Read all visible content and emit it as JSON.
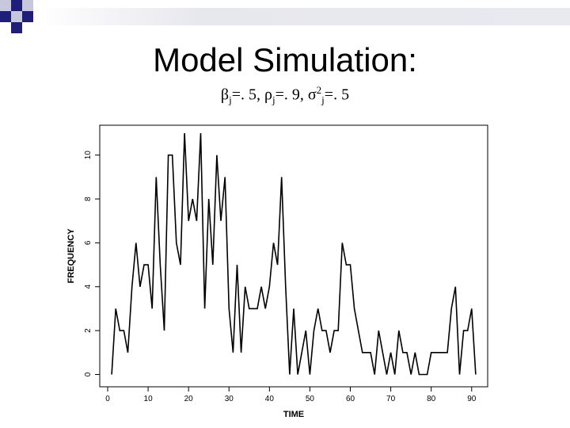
{
  "slide": {
    "title": "Model Simulation:",
    "subtitle": {
      "beta": "β",
      "beta_sub": "j",
      "beta_val": "=. 5, ",
      "rho": "ρ",
      "rho_sub": "j",
      "rho_val": "=. 9, ",
      "sigma": "σ",
      "sigma_sup": "2",
      "sigma_sub": "j",
      "sigma_val": "=. 5"
    }
  },
  "colors": {
    "corner_square_dark": "#1f1f7a",
    "corner_square_light": "#c8c8dc",
    "line": "#000000"
  },
  "chart_data": {
    "type": "line",
    "xlabel": "TIME",
    "ylabel": "FREQUENCY",
    "xlim": [
      0,
      92
    ],
    "ylim": [
      -0.2,
      11
    ],
    "xticks": [
      0,
      10,
      20,
      30,
      40,
      50,
      60,
      70,
      80,
      90
    ],
    "yticks": [
      0,
      2,
      4,
      6,
      8,
      10
    ],
    "grid": false,
    "series": [
      {
        "x": [
          1,
          2,
          3,
          4,
          5,
          6,
          7,
          8,
          9,
          10,
          11,
          12,
          13,
          14,
          15,
          16,
          17,
          18,
          19,
          20,
          21,
          22,
          23,
          24,
          25,
          26,
          27,
          28,
          29,
          30,
          31,
          32,
          33,
          34,
          35,
          36,
          37,
          38,
          39,
          40,
          41,
          42,
          43,
          44,
          45,
          46,
          47,
          48,
          49,
          50,
          51,
          52,
          53,
          54,
          55,
          56,
          57,
          58,
          59,
          60,
          61,
          62,
          63,
          64,
          65,
          66,
          67,
          68,
          69,
          70,
          71,
          72,
          73,
          74,
          75,
          76,
          77,
          78,
          79,
          80,
          81,
          82,
          83,
          84,
          85,
          86,
          87,
          88,
          89,
          90,
          91
        ],
        "y": [
          0,
          3,
          2,
          2,
          1,
          4,
          6,
          4,
          5,
          5,
          3,
          9,
          5,
          2,
          10,
          10,
          6,
          5,
          11,
          7,
          8,
          7,
          11,
          3,
          8,
          5,
          10,
          7,
          9,
          3,
          1,
          5,
          1,
          4,
          3,
          3,
          3,
          4,
          3,
          4,
          6,
          5,
          9,
          4,
          0,
          3,
          0,
          1,
          2,
          0,
          2,
          3,
          2,
          2,
          1,
          2,
          2,
          6,
          5,
          5,
          3,
          2,
          1,
          1,
          1,
          0,
          2,
          1,
          0,
          1,
          0,
          2,
          1,
          1,
          0,
          1,
          0,
          0,
          0,
          1,
          1,
          1,
          1,
          1,
          3,
          4,
          0,
          2,
          2,
          3,
          0
        ]
      }
    ]
  }
}
